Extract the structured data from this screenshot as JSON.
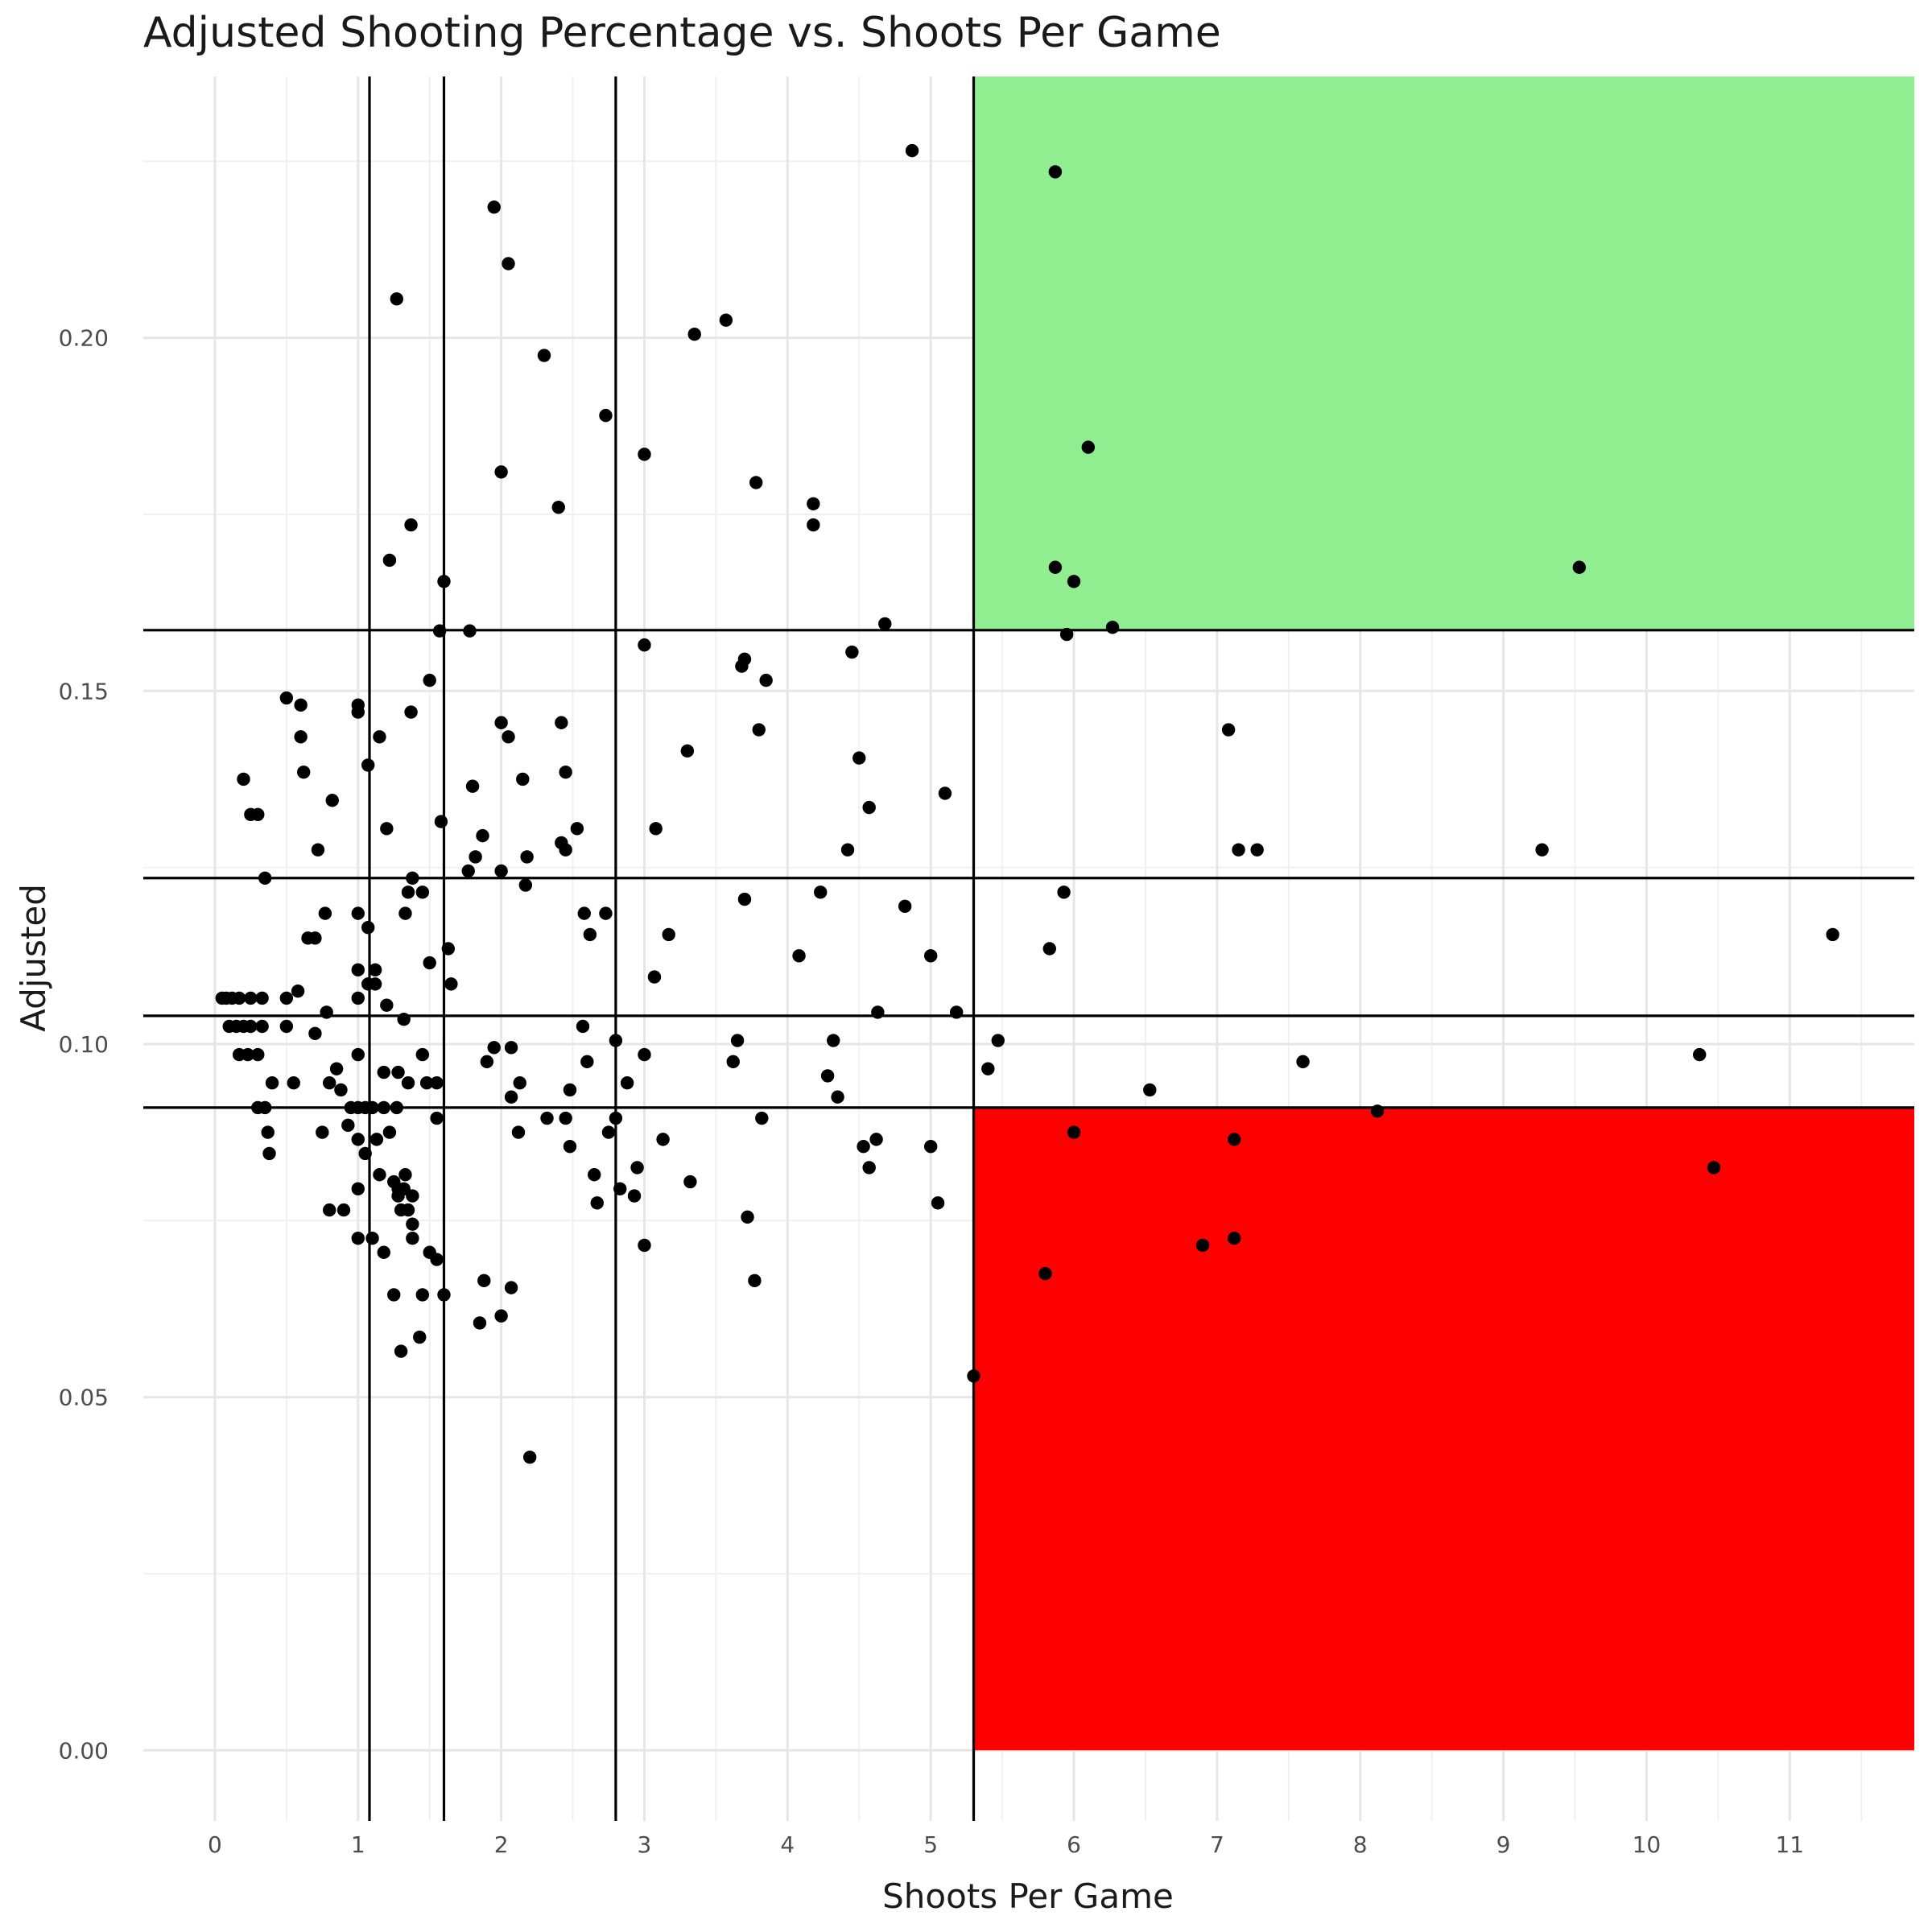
{
  "chart_data": {
    "type": "scatter",
    "title": "Adjusted Shooting Percentage vs. Shoots Per Game",
    "xlabel": "Shoots Per Game",
    "ylabel": "Adjusted",
    "xlim": [
      -0.5,
      11.87
    ],
    "ylim": [
      -0.01,
      0.237
    ],
    "x_ticks": [
      0,
      1,
      2,
      3,
      4,
      5,
      6,
      7,
      8,
      9,
      10,
      11
    ],
    "x_tick_labels": [
      "0",
      "1",
      "2",
      "3",
      "4",
      "5",
      "6",
      "7",
      "8",
      "9",
      "10",
      "11"
    ],
    "y_ticks": [
      0,
      0.05,
      0.1,
      0.15,
      0.2
    ],
    "y_tick_labels": [
      "0.00",
      "0.05",
      "0.10",
      "0.15",
      "0.20"
    ],
    "grid": true,
    "vertical_lines": [
      1.08,
      1.6,
      2.8,
      5.3
    ],
    "horizontal_lines": [
      0.091,
      0.104,
      0.1235,
      0.1586
    ],
    "regions": [
      {
        "name": "high",
        "color": "#90ee90",
        "x": [
          5.3,
          11.87
        ],
        "y": [
          0.1586,
          0.237
        ]
      },
      {
        "name": "low",
        "color": "#ff0000",
        "x": [
          5.3,
          11.87
        ],
        "y": [
          0,
          0.091
        ]
      }
    ],
    "point_color": "#000000",
    "points": [
      [
        0.05,
        0.1065
      ],
      [
        0.08,
        0.1065
      ],
      [
        0.12,
        0.1065
      ],
      [
        0.17,
        0.1065
      ],
      [
        0.25,
        0.1065
      ],
      [
        0.33,
        0.1065
      ],
      [
        0.1,
        0.1025
      ],
      [
        0.15,
        0.1025
      ],
      [
        0.2,
        0.1025
      ],
      [
        0.25,
        0.1025
      ],
      [
        0.33,
        0.1025
      ],
      [
        0.5,
        0.1025
      ],
      [
        0.17,
        0.0985
      ],
      [
        0.23,
        0.0985
      ],
      [
        0.3,
        0.0985
      ],
      [
        0.4,
        0.0945
      ],
      [
        0.55,
        0.0945
      ],
      [
        0.3,
        0.091
      ],
      [
        0.35,
        0.091
      ],
      [
        0.37,
        0.0875
      ],
      [
        0.38,
        0.0845
      ],
      [
        0.2,
        0.1375
      ],
      [
        0.25,
        0.1325
      ],
      [
        0.3,
        0.1325
      ],
      [
        0.35,
        0.1235
      ],
      [
        0.5,
        0.149
      ],
      [
        0.5,
        0.1065
      ],
      [
        0.58,
        0.1075
      ],
      [
        0.6,
        0.1435
      ],
      [
        0.6,
        0.148
      ],
      [
        0.62,
        0.1385
      ],
      [
        0.65,
        0.115
      ],
      [
        0.7,
        0.1015
      ],
      [
        0.7,
        0.115
      ],
      [
        0.72,
        0.1275
      ],
      [
        0.75,
        0.0875
      ],
      [
        0.77,
        0.1185
      ],
      [
        0.78,
        0.1045
      ],
      [
        0.8,
        0.0945
      ],
      [
        0.8,
        0.0765
      ],
      [
        0.82,
        0.1345
      ],
      [
        0.85,
        0.0965
      ],
      [
        0.88,
        0.0935
      ],
      [
        0.9,
        0.0765
      ],
      [
        0.93,
        0.0885
      ],
      [
        0.95,
        0.091
      ],
      [
        1.0,
        0.147
      ],
      [
        1.0,
        0.148
      ],
      [
        1.0,
        0.1185
      ],
      [
        1.0,
        0.1105
      ],
      [
        1.0,
        0.1065
      ],
      [
        1.0,
        0.0985
      ],
      [
        1.0,
        0.091
      ],
      [
        1.0,
        0.0865
      ],
      [
        1.0,
        0.0795
      ],
      [
        1.0,
        0.0725
      ],
      [
        1.05,
        0.091
      ],
      [
        1.05,
        0.0845
      ],
      [
        1.07,
        0.1395
      ],
      [
        1.07,
        0.1165
      ],
      [
        1.07,
        0.1085
      ],
      [
        1.1,
        0.091
      ],
      [
        1.1,
        0.0725
      ],
      [
        1.12,
        0.1105
      ],
      [
        1.12,
        0.1085
      ],
      [
        1.13,
        0.0865
      ],
      [
        1.15,
        0.1435
      ],
      [
        1.15,
        0.0815
      ],
      [
        1.18,
        0.096
      ],
      [
        1.18,
        0.091
      ],
      [
        1.18,
        0.0705
      ],
      [
        1.2,
        0.1305
      ],
      [
        1.2,
        0.1055
      ],
      [
        1.22,
        0.0875
      ],
      [
        1.22,
        0.1685
      ],
      [
        1.25,
        0.0645
      ],
      [
        1.25,
        0.0805
      ],
      [
        1.27,
        0.2055
      ],
      [
        1.27,
        0.091
      ],
      [
        1.28,
        0.096
      ],
      [
        1.28,
        0.0795
      ],
      [
        1.28,
        0.0785
      ],
      [
        1.3,
        0.0765
      ],
      [
        1.3,
        0.0565
      ],
      [
        1.32,
        0.1035
      ],
      [
        1.32,
        0.0795
      ],
      [
        1.33,
        0.1185
      ],
      [
        1.33,
        0.0815
      ],
      [
        1.35,
        0.0945
      ],
      [
        1.35,
        0.1215
      ],
      [
        1.35,
        0.0765
      ],
      [
        1.37,
        0.1735
      ],
      [
        1.37,
        0.147
      ],
      [
        1.38,
        0.1235
      ],
      [
        1.38,
        0.0785
      ],
      [
        1.38,
        0.0745
      ],
      [
        1.38,
        0.0725
      ],
      [
        1.43,
        0.0585
      ],
      [
        1.45,
        0.1215
      ],
      [
        1.45,
        0.0985
      ],
      [
        1.45,
        0.0645
      ],
      [
        1.48,
        0.0945
      ],
      [
        1.5,
        0.1515
      ],
      [
        1.5,
        0.1115
      ],
      [
        1.5,
        0.0705
      ],
      [
        1.55,
        0.0695
      ],
      [
        1.55,
        0.0945
      ],
      [
        1.55,
        0.0895
      ],
      [
        1.57,
        0.1585
      ],
      [
        1.58,
        0.1315
      ],
      [
        1.6,
        0.1655
      ],
      [
        1.6,
        0.0645
      ],
      [
        1.63,
        0.1135
      ],
      [
        1.65,
        0.1085
      ],
      [
        1.77,
        0.1245
      ],
      [
        1.78,
        0.1585
      ],
      [
        1.8,
        0.1365
      ],
      [
        1.82,
        0.1265
      ],
      [
        1.85,
        0.0605
      ],
      [
        1.87,
        0.1295
      ],
      [
        1.88,
        0.0665
      ],
      [
        1.9,
        0.0975
      ],
      [
        1.95,
        0.2185
      ],
      [
        1.95,
        0.0995
      ],
      [
        2.0,
        0.181
      ],
      [
        2.0,
        0.1455
      ],
      [
        2.0,
        0.1245
      ],
      [
        2.0,
        0.0615
      ],
      [
        2.05,
        0.2105
      ],
      [
        2.05,
        0.1435
      ],
      [
        2.07,
        0.0995
      ],
      [
        2.07,
        0.0925
      ],
      [
        2.07,
        0.0655
      ],
      [
        2.12,
        0.0875
      ],
      [
        2.13,
        0.0945
      ],
      [
        2.15,
        0.1375
      ],
      [
        2.17,
        0.1225
      ],
      [
        2.18,
        0.1265
      ],
      [
        2.2,
        0.0415
      ],
      [
        2.3,
        0.1975
      ],
      [
        2.32,
        0.0895
      ],
      [
        2.4,
        0.176
      ],
      [
        2.42,
        0.1455
      ],
      [
        2.42,
        0.1285
      ],
      [
        2.45,
        0.1385
      ],
      [
        2.45,
        0.1275
      ],
      [
        2.45,
        0.0895
      ],
      [
        2.48,
        0.0935
      ],
      [
        2.48,
        0.0855
      ],
      [
        2.53,
        0.1305
      ],
      [
        2.57,
        0.1025
      ],
      [
        2.58,
        0.1185
      ],
      [
        2.6,
        0.0975
      ],
      [
        2.62,
        0.1155
      ],
      [
        2.65,
        0.0815
      ],
      [
        2.67,
        0.0775
      ],
      [
        2.73,
        0.189
      ],
      [
        2.73,
        0.1185
      ],
      [
        2.75,
        0.0875
      ],
      [
        2.8,
        0.1005
      ],
      [
        2.8,
        0.0895
      ],
      [
        2.83,
        0.0795
      ],
      [
        2.88,
        0.0945
      ],
      [
        2.93,
        0.0785
      ],
      [
        2.95,
        0.0825
      ],
      [
        3.0,
        0.1835
      ],
      [
        3.0,
        0.1565
      ],
      [
        3.0,
        0.0985
      ],
      [
        3.0,
        0.0715
      ],
      [
        3.07,
        0.1095
      ],
      [
        3.08,
        0.1305
      ],
      [
        3.13,
        0.0865
      ],
      [
        3.17,
        0.1155
      ],
      [
        3.3,
        0.1415
      ],
      [
        3.32,
        0.0805
      ],
      [
        3.35,
        0.2005
      ],
      [
        3.57,
        0.2025
      ],
      [
        3.62,
        0.0975
      ],
      [
        3.65,
        0.1005
      ],
      [
        3.68,
        0.1535
      ],
      [
        3.7,
        0.1545
      ],
      [
        3.7,
        0.1205
      ],
      [
        3.72,
        0.0755
      ],
      [
        3.77,
        0.0665
      ],
      [
        3.78,
        0.1795
      ],
      [
        3.8,
        0.1445
      ],
      [
        3.82,
        0.0895
      ],
      [
        3.85,
        0.1515
      ],
      [
        4.08,
        0.1125
      ],
      [
        4.18,
        0.1765
      ],
      [
        4.18,
        0.1735
      ],
      [
        4.23,
        0.1215
      ],
      [
        4.28,
        0.0955
      ],
      [
        4.32,
        0.1005
      ],
      [
        4.35,
        0.0925
      ],
      [
        4.42,
        0.1275
      ],
      [
        4.45,
        0.1555
      ],
      [
        4.5,
        0.1405
      ],
      [
        4.53,
        0.0855
      ],
      [
        4.57,
        0.1335
      ],
      [
        4.57,
        0.0825
      ],
      [
        4.62,
        0.0865
      ],
      [
        4.63,
        0.1045
      ],
      [
        4.68,
        0.1595
      ],
      [
        4.82,
        0.1195
      ],
      [
        4.87,
        0.2265
      ],
      [
        5.0,
        0.1125
      ],
      [
        5.0,
        0.0855
      ],
      [
        5.05,
        0.0775
      ],
      [
        5.1,
        0.1355
      ],
      [
        5.18,
        0.1045
      ],
      [
        5.3,
        0.053
      ],
      [
        5.4,
        0.0965
      ],
      [
        5.47,
        0.1005
      ],
      [
        5.8,
        0.0675
      ],
      [
        5.83,
        0.1135
      ],
      [
        5.87,
        0.2235
      ],
      [
        5.87,
        0.1675
      ],
      [
        5.93,
        0.1215
      ],
      [
        5.95,
        0.158
      ],
      [
        6.0,
        0.0875
      ],
      [
        6.0,
        0.1655
      ],
      [
        6.1,
        0.1845
      ],
      [
        6.27,
        0.159
      ],
      [
        6.53,
        0.0935
      ],
      [
        6.9,
        0.0715
      ],
      [
        7.08,
        0.1445
      ],
      [
        7.12,
        0.0865
      ],
      [
        7.12,
        0.0725
      ],
      [
        7.15,
        0.1275
      ],
      [
        7.28,
        0.1275
      ],
      [
        7.6,
        0.0975
      ],
      [
        8.12,
        0.0905
      ],
      [
        9.27,
        0.1275
      ],
      [
        9.53,
        0.1675
      ],
      [
        10.37,
        0.0985
      ],
      [
        10.47,
        0.0825
      ],
      [
        11.3,
        0.1155
      ]
    ]
  }
}
